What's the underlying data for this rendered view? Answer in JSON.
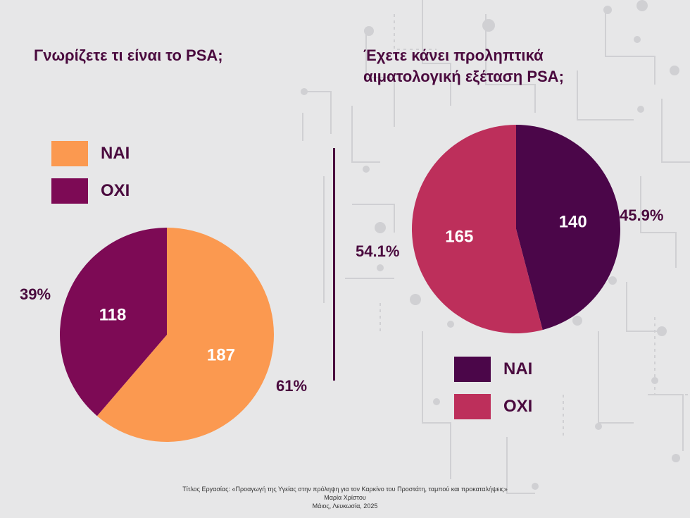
{
  "colors": {
    "orange": "#fb9950",
    "plum": "#7d0a55",
    "dark_purple": "#4b0649",
    "rose": "#bd2f5b",
    "text": "#4a0a3e"
  },
  "chart_data": [
    {
      "type": "pie",
      "title": "Γνωρίζετε τι είναι το PSA;",
      "legend_position": "top-left",
      "slices": [
        {
          "label": "ΝΑΙ",
          "value": 187,
          "percent": "61%",
          "color": "#fb9950"
        },
        {
          "label": "ΟΧΙ",
          "value": 118,
          "percent": "39%",
          "color": "#7d0a55"
        }
      ]
    },
    {
      "type": "pie",
      "title": "Έχετε κάνει προληπτικά αιματολογική εξέταση PSA;",
      "title_lines": [
        "Έχετε κάνει προληπτικά",
        "αιματολογική εξέταση PSA;"
      ],
      "legend_position": "bottom",
      "slices": [
        {
          "label": "ΝΑΙ",
          "value": 140,
          "percent": "45.9%",
          "color": "#4b0649"
        },
        {
          "label": "ΟΧΙ",
          "value": 165,
          "percent": "54.1%",
          "color": "#bd2f5b"
        }
      ]
    }
  ],
  "footer": {
    "line1": "Τίτλος Εργασίας: «Προαγωγή της Υγείας στην πρόληψη για τον Καρκίνο του Προστάτη, ταμπού και προκαταλήψεις»",
    "line2": "Μαρία Χρίστου",
    "line3": "Μάιος, Λευκωσία, 2025"
  }
}
